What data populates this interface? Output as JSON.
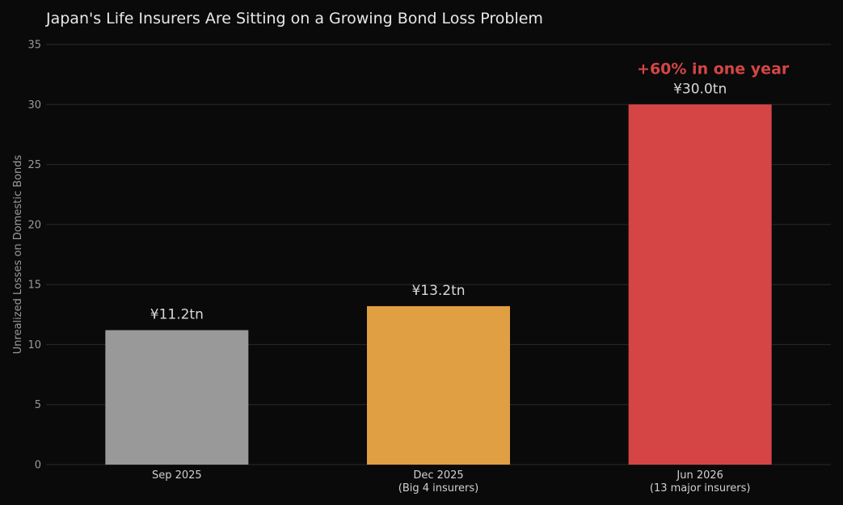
{
  "chart_data": {
    "type": "bar",
    "title": "Japan's Life Insurers Are Sitting on a Growing Bond Loss Problem",
    "ylabel": "Unrealized Losses on Domestic Bonds",
    "xlabel": "",
    "ylim": [
      0,
      35
    ],
    "yticks": [
      0,
      5,
      10,
      15,
      20,
      25,
      30,
      35
    ],
    "grid": true,
    "categories": [
      [
        "Sep 2025"
      ],
      [
        "Dec 2025",
        "(Big 4 insurers)"
      ],
      [
        "Jun 2026",
        "(13 major insurers)"
      ]
    ],
    "values": [
      11.2,
      13.2,
      30.0
    ],
    "data_labels": [
      "¥11.2tn",
      "¥13.2tn",
      "¥30.0tn"
    ],
    "colors": [
      "#999999",
      "#e09f42",
      "#d64545"
    ],
    "annotation": {
      "text": "+60% in one year",
      "category_index": 2,
      "color": "#d64545"
    }
  },
  "theme": {
    "background": "#0a0a0a",
    "grid_color": "#2a2a2a",
    "tick_color": "#9a9a9a",
    "category_label_color": "#d0d0d0",
    "data_label_color": "#d8d8d8"
  }
}
